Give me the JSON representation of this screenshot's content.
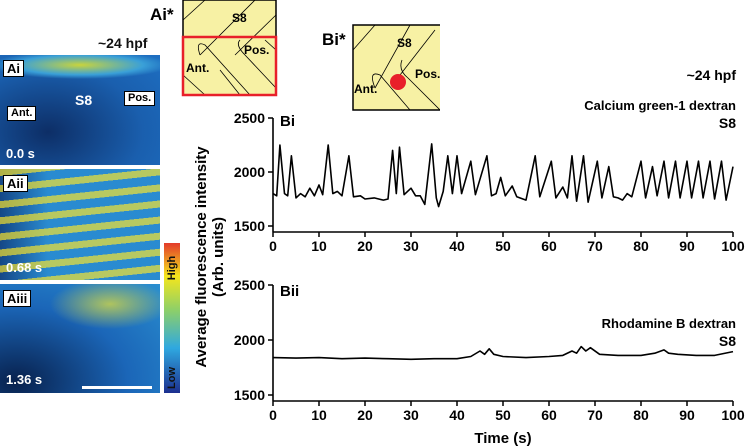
{
  "panels": {
    "stage_label": "~24 hpf",
    "micro": [
      {
        "label": "Ai",
        "time": "0.0 s",
        "s8": "S8",
        "ant": "Ant.",
        "pos": "Pos."
      },
      {
        "label": "Aii",
        "time": "0.68 s"
      },
      {
        "label": "Aiii",
        "time": "1.36 s"
      }
    ],
    "colorbar": {
      "high": "High",
      "low": "Low",
      "colors": [
        "#1c2f8f",
        "#2fa8e0",
        "#8ccf6a",
        "#f5e61c",
        "#e33a2a"
      ]
    },
    "schematic_a": {
      "label": "Ai*",
      "s8": "S8",
      "ant": "Ant.",
      "pos": "Pos."
    },
    "schematic_b": {
      "label": "Bi*",
      "s8": "S8",
      "ant": "Ant.",
      "pos": "Pos."
    },
    "accent_red": "#e8202a",
    "schematic_fill": "#f7f1a4"
  },
  "chart_data": [
    {
      "type": "line",
      "panel": "Bi",
      "stage": "~24 hpf",
      "title": "Calcium green-1 dextran",
      "subtitle": "S8",
      "xlabel": "Time (s)",
      "ylabel": "Average fluorescence intensity (Arb. units)",
      "xlim": [
        0,
        100
      ],
      "ylim": [
        1500,
        2500
      ],
      "xticks": [
        0,
        10,
        20,
        30,
        40,
        50,
        60,
        70,
        80,
        90,
        100
      ],
      "yticks": [
        1500,
        2000,
        2500
      ],
      "points": [
        [
          0,
          1800
        ],
        [
          0.8,
          1780
        ],
        [
          1.5,
          2250
        ],
        [
          2.5,
          1800
        ],
        [
          3.2,
          1780
        ],
        [
          4,
          2150
        ],
        [
          5,
          1760
        ],
        [
          6,
          1800
        ],
        [
          7,
          1770
        ],
        [
          8,
          1850
        ],
        [
          9,
          1780
        ],
        [
          10,
          1880
        ],
        [
          10.8,
          1790
        ],
        [
          12,
          2250
        ],
        [
          13,
          1800
        ],
        [
          14,
          1820
        ],
        [
          15,
          1780
        ],
        [
          16.5,
          2150
        ],
        [
          17.5,
          1770
        ],
        [
          19,
          1780
        ],
        [
          20,
          1750
        ],
        [
          22,
          1760
        ],
        [
          24,
          1740
        ],
        [
          25,
          1750
        ],
        [
          26,
          2200
        ],
        [
          26.8,
          1800
        ],
        [
          27.5,
          2230
        ],
        [
          28.5,
          1790
        ],
        [
          30,
          1850
        ],
        [
          31,
          1780
        ],
        [
          32,
          1780
        ],
        [
          33,
          1700
        ],
        [
          34.5,
          2260
        ],
        [
          35.5,
          1760
        ],
        [
          36,
          1680
        ],
        [
          37,
          1820
        ],
        [
          38,
          2150
        ],
        [
          39,
          1800
        ],
        [
          40,
          2150
        ],
        [
          41,
          1800
        ],
        [
          43,
          2100
        ],
        [
          44,
          1790
        ],
        [
          46.5,
          2150
        ],
        [
          47.5,
          1780
        ],
        [
          48.5,
          1800
        ],
        [
          49.5,
          1950
        ],
        [
          50.5,
          1780
        ],
        [
          52,
          1870
        ],
        [
          53,
          1770
        ],
        [
          55,
          1740
        ],
        [
          57,
          2150
        ],
        [
          58,
          1770
        ],
        [
          60.5,
          2100
        ],
        [
          61.5,
          1760
        ],
        [
          63,
          1860
        ],
        [
          64,
          1760
        ],
        [
          65,
          2150
        ],
        [
          66,
          1730
        ],
        [
          67.5,
          2150
        ],
        [
          68.5,
          1720
        ],
        [
          70.5,
          2100
        ],
        [
          71.5,
          1760
        ],
        [
          73,
          2050
        ],
        [
          74,
          1770
        ],
        [
          75,
          1760
        ],
        [
          76,
          1740
        ],
        [
          77,
          1800
        ],
        [
          78,
          1770
        ],
        [
          80,
          2100
        ],
        [
          81,
          1760
        ],
        [
          82.5,
          2050
        ],
        [
          83.5,
          1780
        ],
        [
          85,
          2100
        ],
        [
          86,
          1760
        ],
        [
          87.5,
          2100
        ],
        [
          88.5,
          1760
        ],
        [
          90,
          2100
        ],
        [
          91,
          1760
        ],
        [
          92.5,
          2100
        ],
        [
          93.5,
          1760
        ],
        [
          95,
          2100
        ],
        [
          96,
          1750
        ],
        [
          97.5,
          2100
        ],
        [
          98.5,
          1740
        ],
        [
          100,
          2050
        ]
      ]
    },
    {
      "type": "line",
      "panel": "Bii",
      "title": "Rhodamine B dextran",
      "subtitle": "S8",
      "xlabel": "Time (s)",
      "ylabel": "Average fluorescence intensity (Arb. units)",
      "xlim": [
        0,
        100
      ],
      "ylim": [
        1500,
        2500
      ],
      "xticks": [
        0,
        10,
        20,
        30,
        40,
        50,
        60,
        70,
        80,
        90,
        100
      ],
      "yticks": [
        1500,
        2000,
        2500
      ],
      "points": [
        [
          0,
          1840
        ],
        [
          5,
          1835
        ],
        [
          10,
          1840
        ],
        [
          15,
          1830
        ],
        [
          20,
          1835
        ],
        [
          25,
          1830
        ],
        [
          30,
          1825
        ],
        [
          35,
          1830
        ],
        [
          40,
          1830
        ],
        [
          43,
          1850
        ],
        [
          45,
          1900
        ],
        [
          46,
          1870
        ],
        [
          47,
          1920
        ],
        [
          48,
          1870
        ],
        [
          50,
          1850
        ],
        [
          55,
          1840
        ],
        [
          60,
          1850
        ],
        [
          63,
          1860
        ],
        [
          65,
          1900
        ],
        [
          66,
          1880
        ],
        [
          67,
          1940
        ],
        [
          68,
          1900
        ],
        [
          69,
          1930
        ],
        [
          71,
          1870
        ],
        [
          75,
          1860
        ],
        [
          80,
          1860
        ],
        [
          83,
          1880
        ],
        [
          85,
          1910
        ],
        [
          86,
          1880
        ],
        [
          88,
          1870
        ],
        [
          92,
          1860
        ],
        [
          96,
          1860
        ],
        [
          100,
          1895
        ]
      ]
    }
  ]
}
